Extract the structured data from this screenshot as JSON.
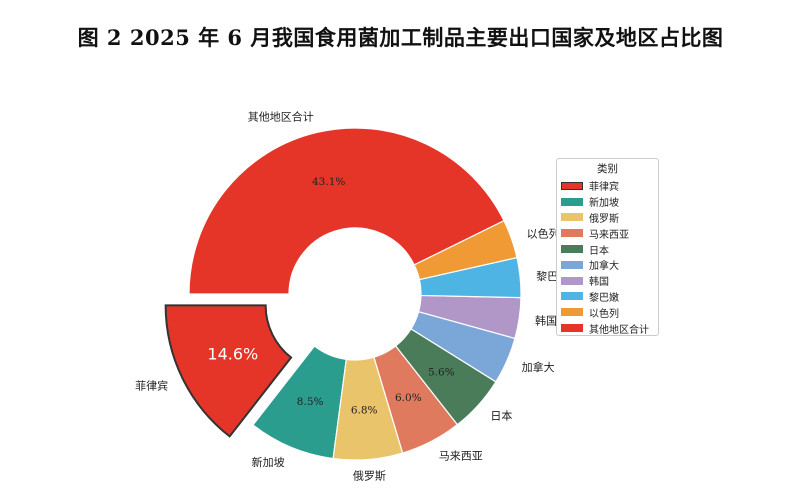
{
  "title": "图 2 2025 年 6 月我国食用菌加工制品主要出口国家及地区占比图",
  "chart_data": {
    "type": "pie",
    "variant": "donut",
    "start_angle_deg": 180,
    "direction": "counterclockwise",
    "exploded": [
      "菲律宾"
    ],
    "slices": [
      {
        "label": "菲律宾",
        "value": 14.6,
        "pct_label": "14.6%",
        "color": "#e53428",
        "edge": "#333333"
      },
      {
        "label": "新加坡",
        "value": 8.5,
        "pct_label": "8.5%",
        "color": "#2a9d8f"
      },
      {
        "label": "俄罗斯",
        "value": 6.8,
        "pct_label": "6.8%",
        "color": "#e9c46a"
      },
      {
        "label": "马来西亚",
        "value": 6.0,
        "pct_label": "6.0%",
        "color": "#e07a5f"
      },
      {
        "label": "日本",
        "value": 5.6,
        "pct_label": "5.6%",
        "color": "#4a7c59"
      },
      {
        "label": "加拿大",
        "value": 4.6,
        "pct_label": "",
        "color": "#7aa6d8"
      },
      {
        "label": "韩国",
        "value": 4.0,
        "pct_label": "",
        "color": "#b197c8"
      },
      {
        "label": "黎巴嫩",
        "value": 3.9,
        "pct_label": "",
        "color": "#4eb4e3"
      },
      {
        "label": "以色列",
        "value": 3.8,
        "pct_label": "",
        "color": "#f09a36"
      },
      {
        "label": "其他地区合计",
        "value": 43.1,
        "pct_label": "43.1%",
        "color": "#e53428"
      }
    ],
    "legend": {
      "title": "类别",
      "placement": "right"
    }
  }
}
